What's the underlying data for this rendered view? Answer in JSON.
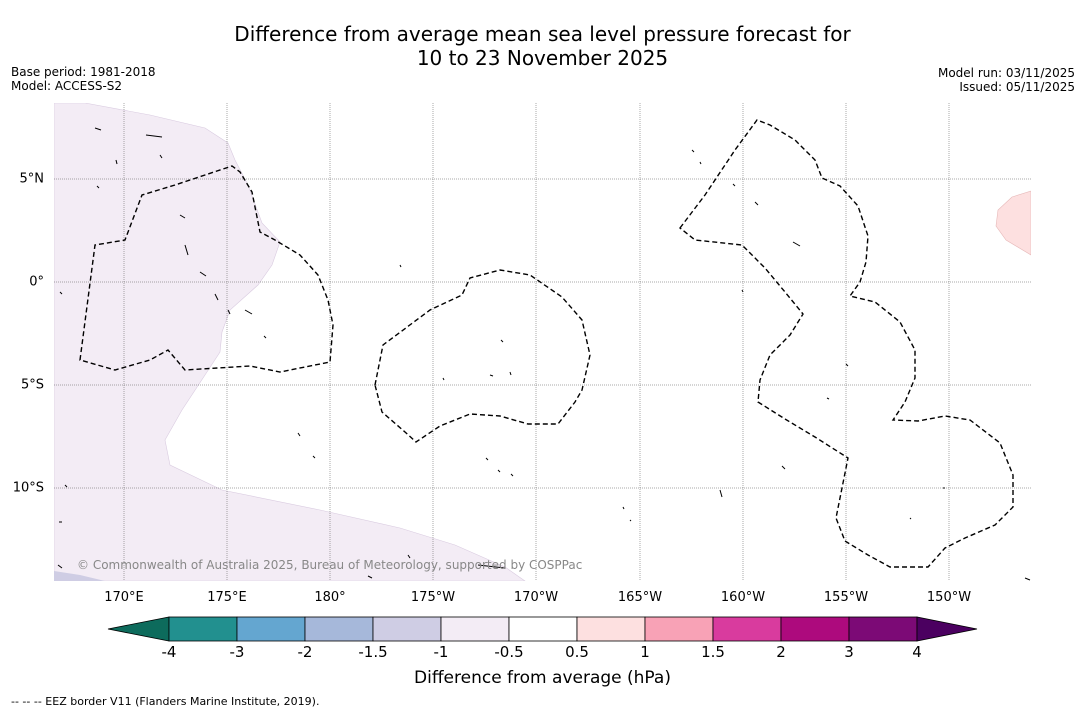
{
  "title": {
    "line1": "Difference from average mean sea level pressure forecast for",
    "line2": "10 to 23 November 2025"
  },
  "meta": {
    "base_period": "Base period: 1981-2018",
    "model": "Model: ACCESS-S2",
    "model_run": "Model run: 03/11/2025",
    "issued": "Issued: 05/11/2025"
  },
  "map": {
    "longitude_labels": [
      "170°E",
      "175°E",
      "180°",
      "175°W",
      "170°W",
      "165°W",
      "160°W",
      "155°W",
      "150°W"
    ],
    "latitude_labels": [
      "5°N",
      "0°",
      "5°S",
      "10°S"
    ],
    "copyright": "© Commonwealth of Australia 2025, Bureau of Meteorology, supported by COSPPac"
  },
  "colorbar": {
    "ticks": [
      "-4",
      "-3",
      "-2",
      "-1.5",
      "-1",
      "-0.5",
      "0.5",
      "1",
      "1.5",
      "2",
      "3",
      "4"
    ],
    "colors": {
      "under": "#0d6b5c",
      "bins": [
        "#22908f",
        "#64a6d0",
        "#a6b8da",
        "#cfcde4",
        "#f3ecf5",
        "#ffffff",
        "#fde0e0",
        "#f8a2b6",
        "#d93b9e",
        "#ad0a7d",
        "#7c0a76"
      ],
      "over": "#4b0060"
    },
    "label": "Difference from average (hPa)"
  },
  "footnote": "--  --  -- EEZ border V11 (Flanders Marine Institute, 2019)."
}
